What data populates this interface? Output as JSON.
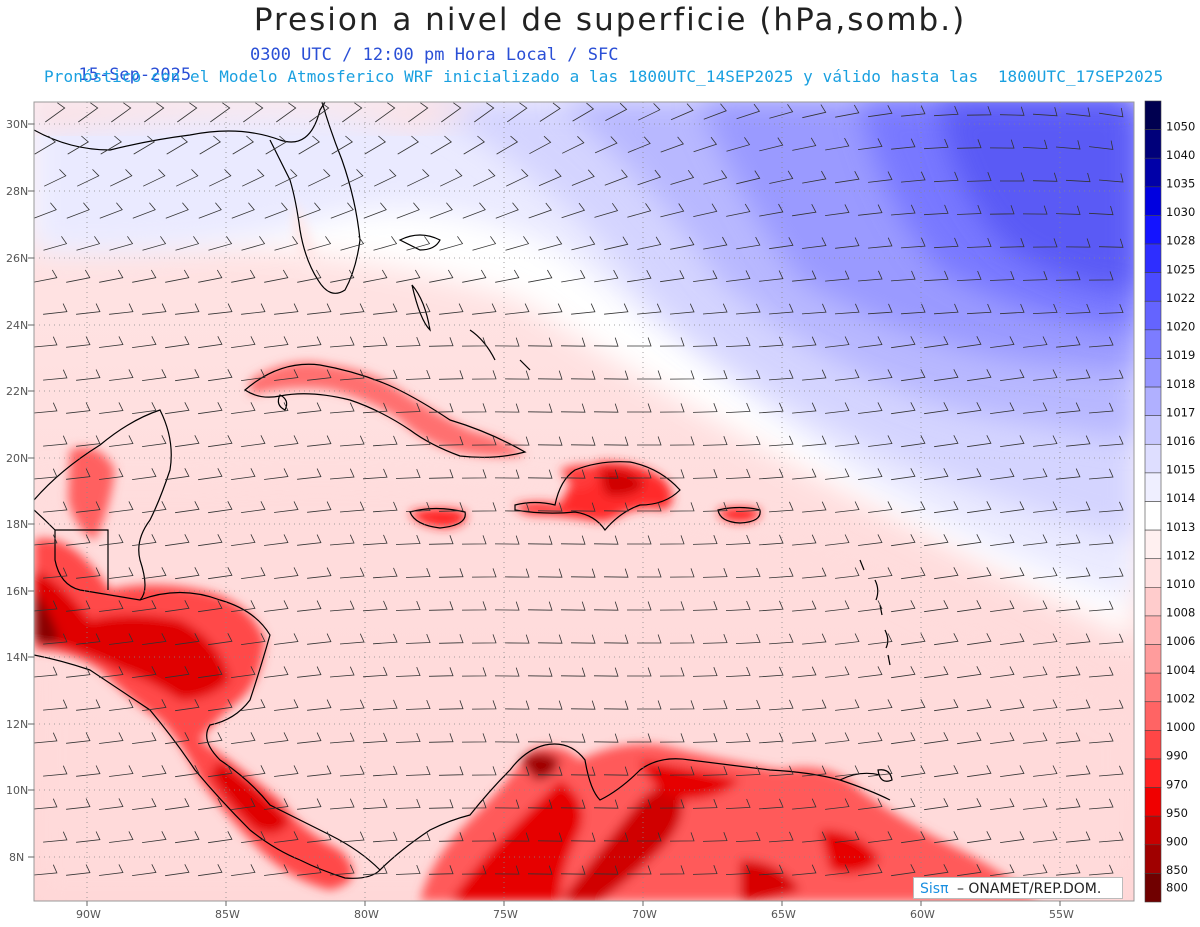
{
  "header": {
    "title": "Presion a nivel de superficie (hPa,somb.)",
    "date": "15-Sep-2025",
    "time_info": "0300 UTC / 12:00 pm Hora Local / SFC",
    "model_info": "Pronóstico con el Modelo Atmosferico WRF inicializado a las 1800UTC_14SEP2025 y válido hasta las  1800UTC_17SEP2025"
  },
  "axes": {
    "lat_labels": [
      "30N",
      "28N",
      "26N",
      "24N",
      "22N",
      "20N",
      "18N",
      "16N",
      "14N",
      "12N",
      "10N",
      "8N"
    ],
    "lon_labels": [
      "90W",
      "85W",
      "80W",
      "75W",
      "70W",
      "65W",
      "60W",
      "55W"
    ]
  },
  "legend": {
    "levels": [
      "1050",
      "1040",
      "1035",
      "1030",
      "1028",
      "1025",
      "1022",
      "1020",
      "1019",
      "1018",
      "1017",
      "1016",
      "1015",
      "1014",
      "1013",
      "1012",
      "1010",
      "1008",
      "1006",
      "1004",
      "1002",
      "1000",
      "990",
      "970",
      "950",
      "900",
      "850",
      "800"
    ],
    "colors": [
      "#000050",
      "#00007a",
      "#0000a8",
      "#0000e0",
      "#1414ff",
      "#2e2eff",
      "#4a4aff",
      "#6464ff",
      "#7c7cff",
      "#9696ff",
      "#b0b0ff",
      "#c8c8ff",
      "#dedeff",
      "#efefff",
      "#ffffff",
      "#fff0f0",
      "#ffe0e0",
      "#ffcccc",
      "#ffb4b4",
      "#ff9c9c",
      "#ff8080",
      "#ff6464",
      "#ff4646",
      "#ff2222",
      "#f00000",
      "#c80000",
      "#a00000",
      "#700000"
    ]
  },
  "credit": {
    "logo": "Sisπ",
    "text": "– ONAMET/REP.DOM."
  },
  "colors": {
    "subtitle_blue": "#2a4fd6",
    "model_cyan": "#1aa0e0"
  }
}
